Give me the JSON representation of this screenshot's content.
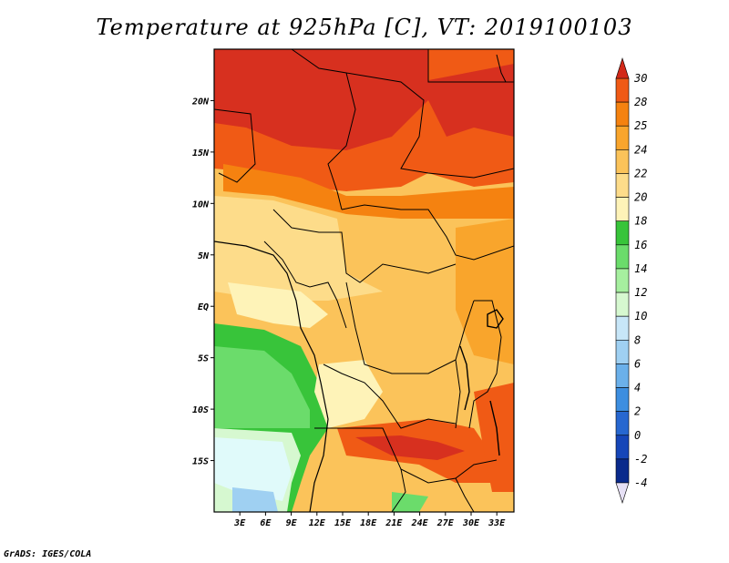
{
  "title": "Temperature at 925hPa [C], VT: 2019100103",
  "footer": "GrADS: IGES/COLA",
  "map": {
    "lon_range": [
      0,
      35
    ],
    "lat_range": [
      -20,
      25
    ],
    "lon_ticks": [
      "3E",
      "6E",
      "9E",
      "12E",
      "15E",
      "18E",
      "21E",
      "24E",
      "27E",
      "30E",
      "33E"
    ],
    "lon_tick_values": [
      3,
      6,
      9,
      12,
      15,
      18,
      21,
      24,
      27,
      30,
      33
    ],
    "lat_ticks": [
      "20N",
      "15N",
      "10N",
      "5N",
      "EQ",
      "5S",
      "10S",
      "15S"
    ],
    "lat_tick_values": [
      20,
      15,
      10,
      5,
      0,
      -5,
      -10,
      -15
    ]
  },
  "colorbar": {
    "labels": [
      "30",
      "28",
      "25",
      "24",
      "22",
      "20",
      "18",
      "16",
      "14",
      "12",
      "10",
      "8",
      "6",
      "4",
      "2",
      "0",
      "-2",
      "-4"
    ],
    "colors": [
      "#d7301f",
      "#f05a15",
      "#f58210",
      "#f9a52c",
      "#fbc35a",
      "#fddc8a",
      "#fef3b8",
      "#38c43a",
      "#6bdc6b",
      "#a6ef9f",
      "#d6f8d0",
      "#c7e6f8",
      "#9fd0f2",
      "#6bb0ea",
      "#3d8ee0",
      "#2767d0",
      "#1646b8",
      "#0a2a8c",
      "#0a1566"
    ],
    "top_color": "#d22818",
    "bottom_color": "#e6e0f5"
  }
}
